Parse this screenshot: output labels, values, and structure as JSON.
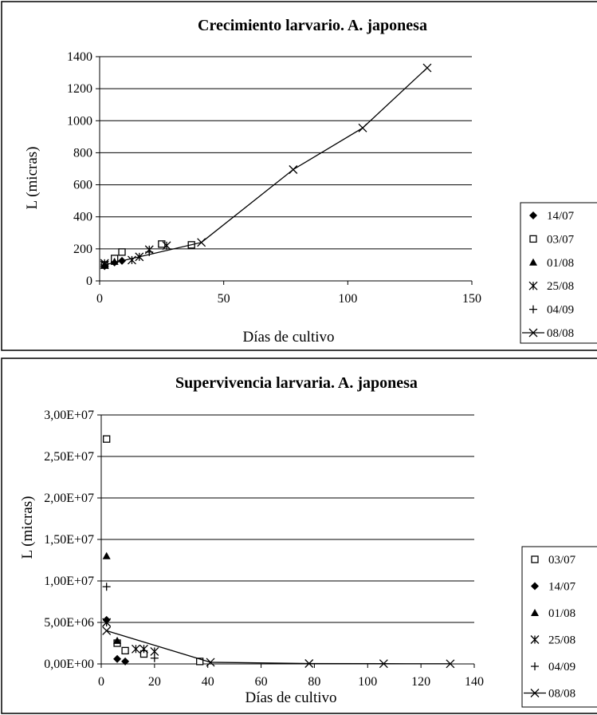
{
  "chart_data": [
    {
      "type": "scatter",
      "title": "Crecimiento larvario. A. japonesa",
      "xlabel": "Días de cultivo",
      "ylabel": "L (micras)",
      "xlim": [
        0,
        150
      ],
      "ylim": [
        0,
        1400
      ],
      "xticks": [
        "0",
        "50",
        "100",
        "150"
      ],
      "yticks": [
        "0",
        "200",
        "400",
        "600",
        "800",
        "1000",
        "1200",
        "1400"
      ],
      "grid": "horizontal",
      "legend_position": "right",
      "series": [
        {
          "name": "14/07",
          "marker": "diamond",
          "line": false,
          "x": [
            2,
            6,
            9
          ],
          "y": [
            92,
            115,
            125
          ]
        },
        {
          "name": "03/07",
          "marker": "square-open",
          "line": false,
          "x": [
            2,
            6,
            9,
            25,
            37
          ],
          "y": [
            100,
            140,
            180,
            230,
            225
          ]
        },
        {
          "name": "01/08",
          "marker": "triangle",
          "line": false,
          "x": [
            2,
            6
          ],
          "y": [
            95,
            120
          ]
        },
        {
          "name": "25/08",
          "marker": "asterisk",
          "line": false,
          "x": [
            2,
            13,
            16,
            20,
            27
          ],
          "y": [
            110,
            130,
            150,
            195,
            220
          ]
        },
        {
          "name": "04/09",
          "marker": "plus",
          "line": false,
          "x": [
            2,
            20
          ],
          "y": [
            100,
            180
          ]
        },
        {
          "name": "08/08",
          "marker": "x",
          "line": true,
          "x": [
            2,
            41,
            78,
            106,
            132
          ],
          "y": [
            100,
            240,
            695,
            955,
            1330
          ]
        }
      ]
    },
    {
      "type": "scatter",
      "title": "Supervivencia larvaria. A. japonesa",
      "xlabel": "Días de cultivo",
      "ylabel": "L (micras)",
      "xlim": [
        0,
        140
      ],
      "ylim": [
        0,
        30000000
      ],
      "xticks": [
        "0",
        "20",
        "40",
        "60",
        "80",
        "100",
        "120",
        "140"
      ],
      "yticks": [
        "0,00E+00",
        "5,00E+06",
        "1,00E+07",
        "1,50E+07",
        "2,00E+07",
        "2,50E+07",
        "3,00E+07"
      ],
      "grid": "horizontal",
      "legend_position": "right",
      "series": [
        {
          "name": "03/07",
          "marker": "square-open",
          "line": false,
          "x": [
            2,
            6,
            9,
            16,
            37
          ],
          "y": [
            27100000,
            2500000,
            1600000,
            1200000,
            300000
          ]
        },
        {
          "name": "14/07",
          "marker": "diamond",
          "line": false,
          "x": [
            2,
            6,
            9
          ],
          "y": [
            5300000,
            600000,
            300000
          ]
        },
        {
          "name": "01/08",
          "marker": "triangle",
          "line": false,
          "x": [
            2,
            6
          ],
          "y": [
            13000000,
            2800000
          ]
        },
        {
          "name": "25/08",
          "marker": "asterisk",
          "line": false,
          "x": [
            2,
            13,
            16,
            20
          ],
          "y": [
            5000000,
            1800000,
            1800000,
            1500000
          ]
        },
        {
          "name": "04/09",
          "marker": "plus",
          "line": false,
          "x": [
            2,
            20
          ],
          "y": [
            9300000,
            700000
          ]
        },
        {
          "name": "08/08",
          "marker": "x",
          "line": true,
          "x": [
            2,
            41,
            78,
            106,
            131
          ],
          "y": [
            4000000,
            200000,
            50000,
            30000,
            20000
          ]
        }
      ]
    }
  ]
}
